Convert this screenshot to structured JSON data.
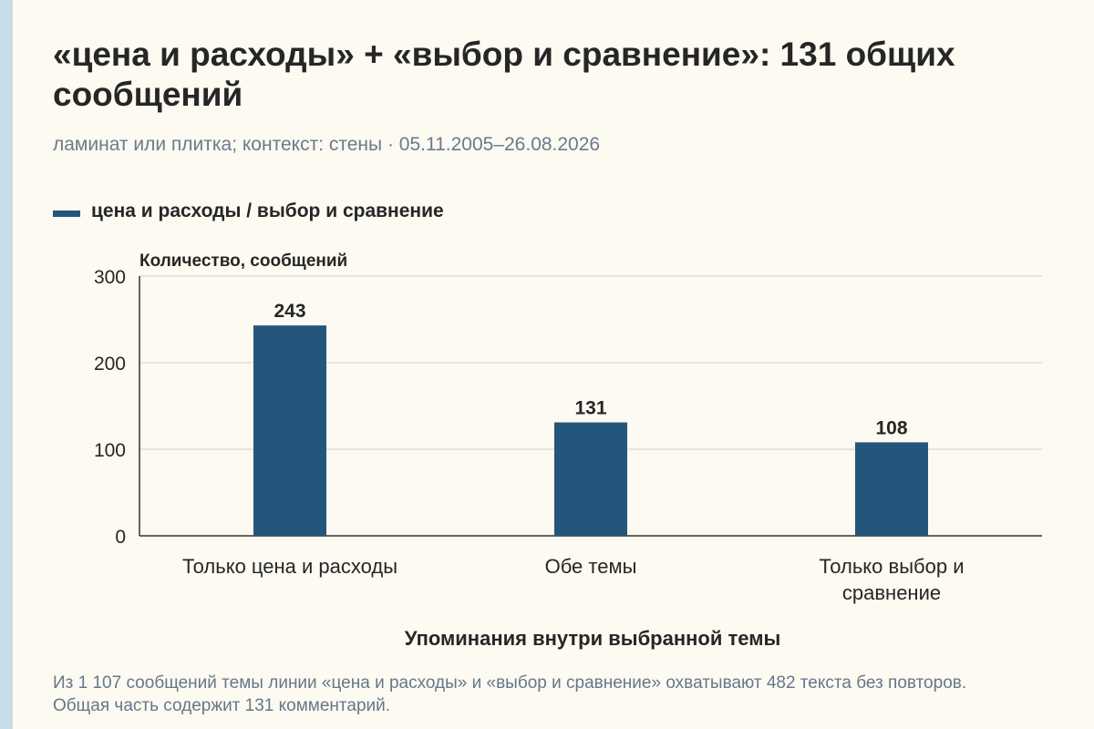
{
  "title": "«цена и расходы» + «выбор и сравнение»: 131 общих сообщений",
  "subtitle": "ламинат или плитка; контекст: стены · 05.11.2005–26.08.2026",
  "footnote": "Из 1 107 сообщений темы линии «цена и расходы» и «выбор и сравнение» охватывают 482 текста без повторов. Общая часть содержит 131 комментарий.",
  "colors": {
    "bar": "#24567c",
    "grid": "#d9d9d4",
    "axis": "#333333",
    "text": "#262626",
    "muted": "#6b7a8c",
    "background": "#fcfaf1"
  },
  "chart_data": {
    "type": "bar",
    "categories": [
      "Только цена и расходы",
      "Обе темы",
      "Только выбор и сравнение"
    ],
    "series": [
      {
        "name": "цена и расходы / выбор и сравнение",
        "values": [
          243,
          131,
          108
        ]
      }
    ],
    "ylabel": "Количество, сообщений",
    "xlabel": "Упоминания внутри выбранной темы",
    "ylim": [
      0,
      300
    ],
    "yticks": [
      0,
      100,
      200,
      300
    ],
    "data_labels": true,
    "grid": true,
    "legend": "top-left"
  }
}
